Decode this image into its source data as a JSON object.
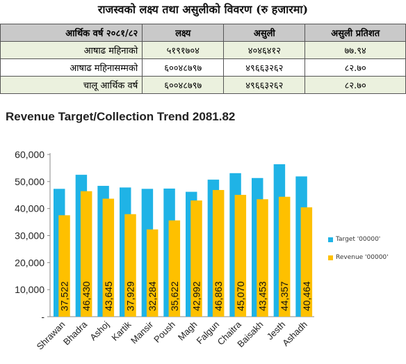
{
  "header": {
    "title": "राजस्वको लक्ष्य तथा असुलीको विवरण (रु हजारमा)"
  },
  "table": {
    "headers": [
      "आर्थिक वर्ष २०८१/८२",
      "लक्ष्य",
      "असुली",
      "असुली प्रतिशत"
    ],
    "rows": [
      [
        "आषाढ महिनाको",
        "५१९१७०४",
        "४०४६४१२",
        "७७.९४"
      ],
      [
        "आषाढ महिनासम्मको",
        "६००४८७९७",
        "४९६६३२६२",
        "८२.७०"
      ],
      [
        "चालू आर्थिक वर्ष",
        "६००४८७९७",
        "४९६६३२६२",
        "८२.७०"
      ]
    ]
  },
  "colors": {
    "target": "#1fb3e6",
    "revenue": "#fec000",
    "table_header": "#c9c9c9",
    "table_highlight": "#ebf1de"
  },
  "chart_data": {
    "type": "bar",
    "title": "Revenue Target/Collection Trend 2081.82",
    "categories": [
      "Shrawan",
      "Bhadra",
      "Ashoj",
      "Kartik",
      "Mansir",
      "Poush",
      "Magh",
      "Falgun",
      "Chaitra",
      "Baisakh",
      "Jesth",
      "Ashadh"
    ],
    "series": [
      {
        "name": "Target '00000'",
        "values": [
          47300,
          52500,
          48400,
          47800,
          47300,
          47400,
          46200,
          50700,
          53100,
          51300,
          56400,
          51900
        ]
      },
      {
        "name": "Revenue '00000'",
        "values": [
          37522,
          46430,
          43645,
          37929,
          32284,
          35622,
          42992,
          46863,
          45070,
          43453,
          44357,
          40464
        ]
      }
    ],
    "data_labels": [
      "37,522",
      "46,430",
      "43,645",
      "37,929",
      "32,284",
      "35,622",
      "42,992",
      "46,863",
      "45,070",
      "43,453",
      "44,357",
      "40,464"
    ],
    "yticks": [
      "-",
      "10,000",
      "20,000",
      "30,000",
      "40,000",
      "50,000",
      "60,000"
    ],
    "ylim": [
      0,
      60000
    ],
    "legend_position": "right"
  }
}
